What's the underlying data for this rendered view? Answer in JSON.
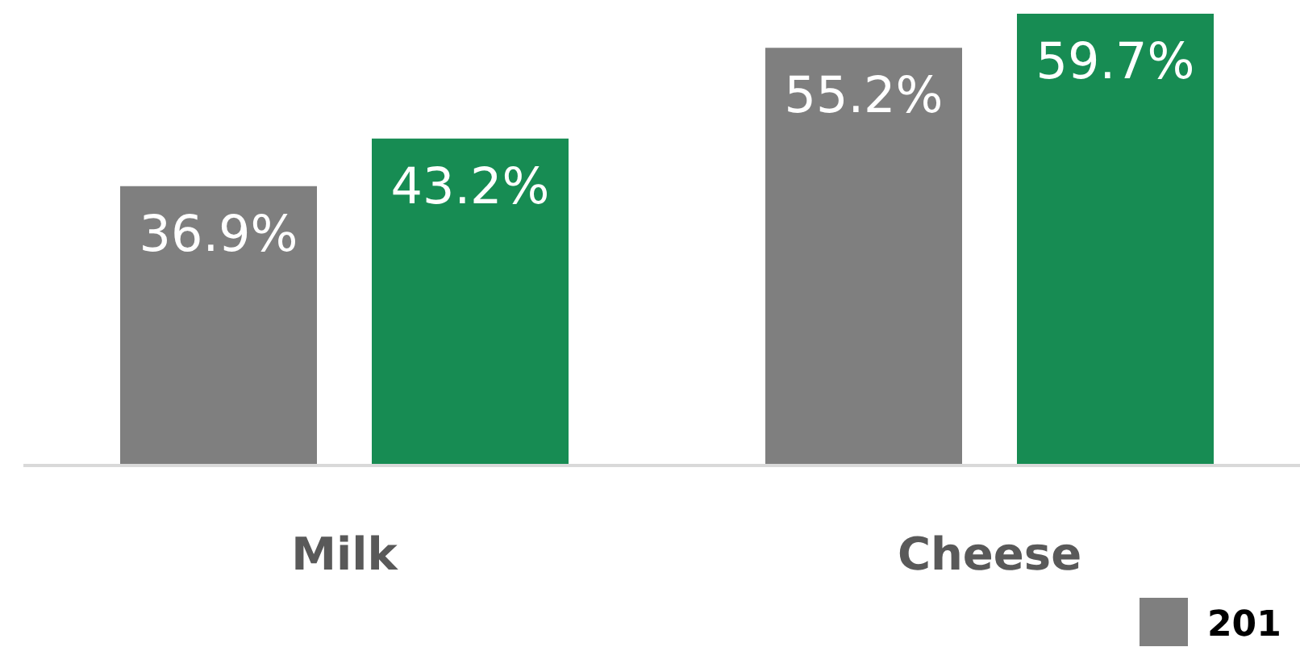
{
  "chart_data": {
    "type": "bar",
    "categories": [
      "Milk",
      "Cheese"
    ],
    "series": [
      {
        "name": "201",
        "color": "#7f7f7f",
        "values": [
          36.9,
          55.2
        ],
        "value_labels": [
          "36.9%",
          "55.2%"
        ]
      },
      {
        "color": "#178c53",
        "values": [
          43.2,
          59.7
        ],
        "value_labels": [
          "43.2%",
          "59.7%"
        ]
      }
    ],
    "legend": "bottom right",
    "grid": false
  }
}
